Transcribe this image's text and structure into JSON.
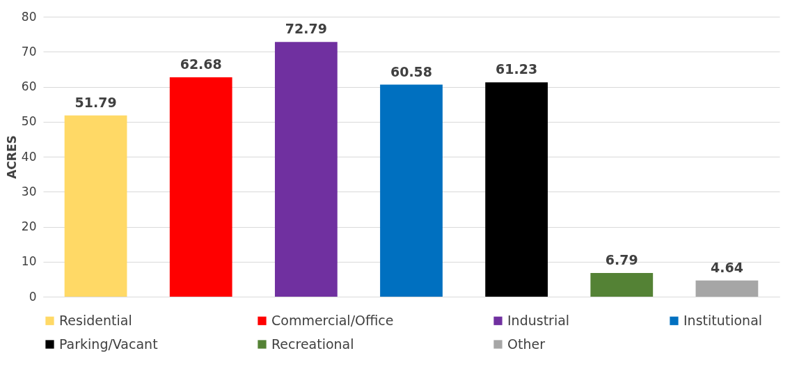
{
  "chart_data": {
    "type": "bar",
    "ylabel": "ACRES",
    "categories": [
      null,
      null,
      null,
      null,
      null,
      null,
      null
    ],
    "series": [
      {
        "name": "Residential",
        "color": "#ffd966",
        "values": [
          51.79,
          null,
          null,
          null,
          null,
          null,
          null
        ]
      },
      {
        "name": "Commercial/Office",
        "color": "#ff0000",
        "values": [
          null,
          62.68,
          null,
          null,
          null,
          null,
          null
        ]
      },
      {
        "name": "Industrial",
        "color": "#7030a0",
        "values": [
          null,
          null,
          72.79,
          null,
          null,
          null,
          null
        ]
      },
      {
        "name": "Institutional",
        "color": "#0070c0",
        "values": [
          null,
          null,
          null,
          60.58,
          null,
          null,
          null
        ]
      },
      {
        "name": "Parking/Vacant",
        "color": "#000000",
        "values": [
          null,
          null,
          null,
          null,
          61.23,
          null,
          null
        ]
      },
      {
        "name": "Recreational",
        "color": "#548235",
        "values": [
          null,
          null,
          null,
          null,
          null,
          6.79,
          null
        ]
      },
      {
        "name": "Other",
        "color": "#a6a6a6",
        "values": [
          null,
          null,
          null,
          null,
          null,
          null,
          4.64
        ]
      }
    ],
    "ylim": [
      0,
      80
    ],
    "yticks": [
      0,
      10,
      20,
      30,
      40,
      50,
      60,
      70,
      80
    ],
    "grid": "y",
    "legend": "bottom",
    "tick_labels": "y",
    "data_labels": true
  }
}
